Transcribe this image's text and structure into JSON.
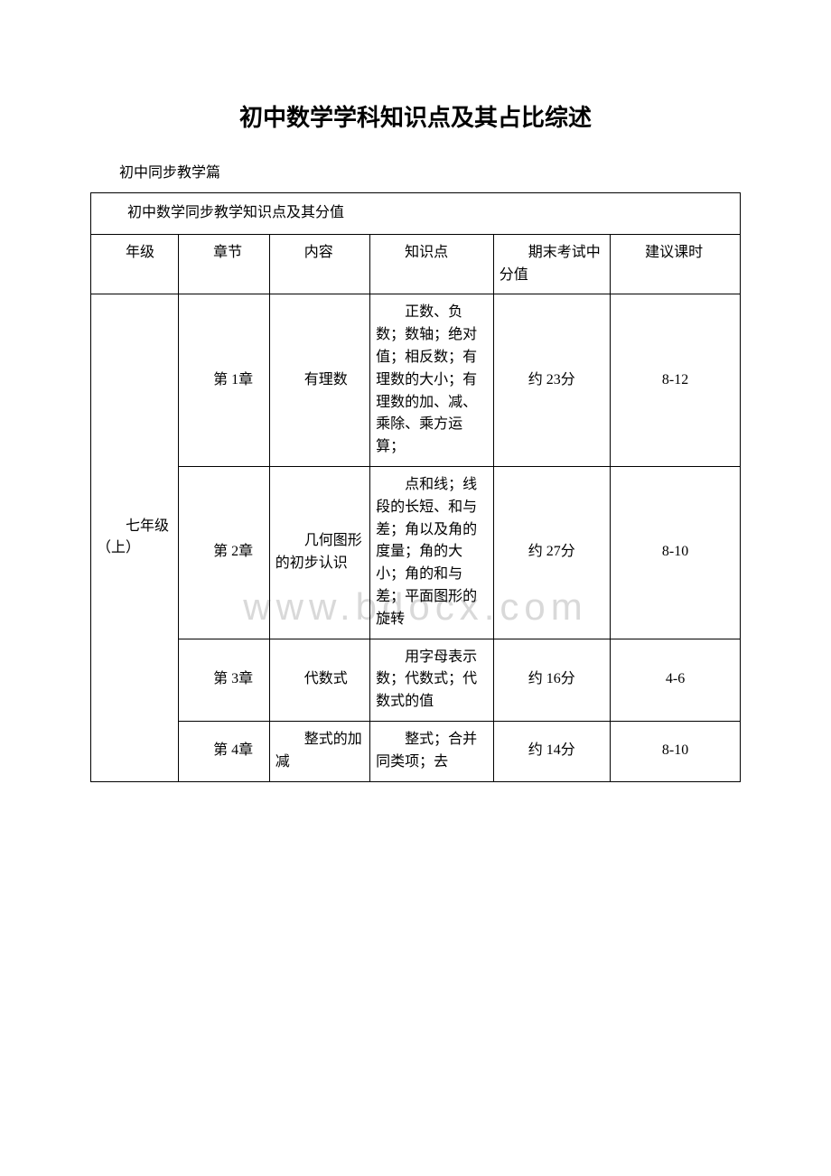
{
  "doc": {
    "title": "初中数学学科知识点及其占比综述",
    "subtitle": "初中同步教学篇",
    "table_caption": "初中数学同步教学知识点及其分值",
    "watermark": "www.bdocx.com",
    "headers": {
      "grade": "年级",
      "chapter": "章节",
      "topic": "内容",
      "knowledge": "知识点",
      "score": "期末考试中分值",
      "hours": "建议课时"
    },
    "grade_label": "七年级（上）",
    "rows": [
      {
        "chapter": "第 1章",
        "topic": "有理数",
        "knowledge": "正数、负数；数轴；绝对值；相反数；有理数的大小；有理数的加、减、乘除、乘方运算；",
        "score": "约 23分",
        "hours": "8-12"
      },
      {
        "chapter": "第 2章",
        "topic": "几何图形的初步认识",
        "knowledge": "点和线；线段的长短、和与差；角以及角的度量；角的大小；角的和与差；平面图形的旋转",
        "score": "约 27分",
        "hours": "8-10"
      },
      {
        "chapter": "第 3章",
        "topic": "代数式",
        "knowledge": "用字母表示数；代数式；代数式的值",
        "score": "约 16分",
        "hours": "4-6"
      },
      {
        "chapter": "第 4章",
        "topic": "整式的加减",
        "knowledge": "整式；合并同类项；去",
        "score": "约 14分",
        "hours": "8-10"
      }
    ]
  }
}
